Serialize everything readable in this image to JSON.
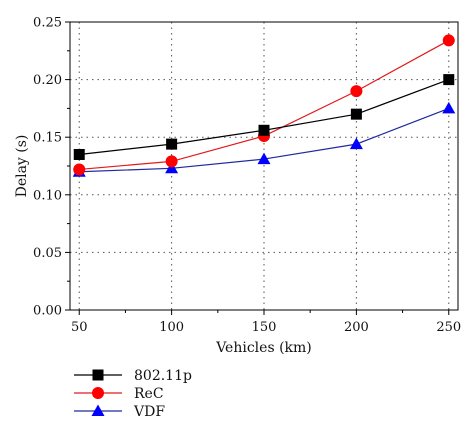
{
  "chart_data": {
    "type": "line",
    "x": [
      50,
      100,
      150,
      200,
      250
    ],
    "series": [
      {
        "name": "802.11p",
        "values": [
          0.135,
          0.144,
          0.156,
          0.17,
          0.2
        ],
        "color": "#000000",
        "marker": "square",
        "marker_color": "#000000"
      },
      {
        "name": "ReC",
        "values": [
          0.122,
          0.129,
          0.151,
          0.19,
          0.234
        ],
        "color": "#e31a1c",
        "marker": "circle",
        "marker_color": "#ff0000"
      },
      {
        "name": "VDF",
        "values": [
          0.12,
          0.123,
          0.131,
          0.144,
          0.175
        ],
        "color": "#1f2a9c",
        "marker": "triangle",
        "marker_color": "#0000ff"
      }
    ],
    "xlabel": "Vehicles (km)",
    "ylabel": "Delay (s)",
    "xlim": [
      45,
      255
    ],
    "ylim": [
      0,
      0.25
    ],
    "x_ticks": [
      "50",
      "100",
      "150",
      "200",
      "250"
    ],
    "y_ticks": [
      "0.00",
      "0.05",
      "0.10",
      "0.15",
      "0.20",
      "0.25"
    ],
    "grid": true,
    "legend_position": "bottom-left, below plot"
  }
}
